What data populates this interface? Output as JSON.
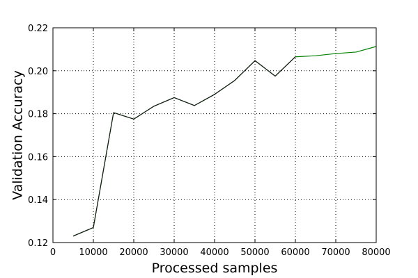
{
  "chart_data": {
    "type": "line",
    "title": "",
    "xlabel": "Processed samples",
    "ylabel": "Validation Accuracy",
    "xlim": [
      0,
      80000
    ],
    "ylim": [
      0.12,
      0.22
    ],
    "xticks": [
      0,
      10000,
      20000,
      30000,
      40000,
      50000,
      60000,
      70000,
      80000
    ],
    "xtick_labels": [
      "0",
      "10000",
      "20000",
      "30000",
      "40000",
      "50000",
      "60000",
      "70000",
      "80000"
    ],
    "yticks": [
      0.12,
      0.14,
      0.16,
      0.18,
      0.2,
      0.22
    ],
    "ytick_labels": [
      "0.12",
      "0.14",
      "0.16",
      "0.18",
      "0.20",
      "0.22"
    ],
    "grid": true,
    "legend": "none",
    "series": [
      {
        "color": "#008000",
        "x": [
          5000,
          10000,
          15000,
          20000,
          25000,
          30000,
          35000,
          40000,
          45000,
          50000,
          55000,
          60000,
          65000,
          70000,
          75000,
          80000
        ],
        "y": [
          0.123,
          0.127,
          0.1805,
          0.1775,
          0.1835,
          0.1875,
          0.1838,
          0.189,
          0.1955,
          0.2047,
          0.1975,
          0.2065,
          0.207,
          0.208,
          0.2087,
          0.2113
        ]
      },
      {
        "color": "#1a1a1a",
        "x": [
          5000,
          10000,
          15000,
          20000,
          25000,
          30000,
          35000,
          40000,
          45000,
          50000,
          55000,
          60000
        ],
        "y": [
          0.123,
          0.127,
          0.1805,
          0.1775,
          0.1835,
          0.1875,
          0.1838,
          0.189,
          0.1955,
          0.2047,
          0.1975,
          0.2065
        ]
      }
    ]
  }
}
